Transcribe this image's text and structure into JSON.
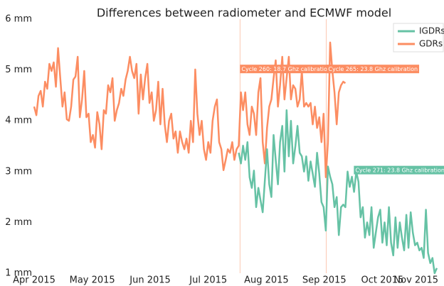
{
  "chart_data": {
    "type": "line",
    "title": "Differences between radiometer and ECMWF model",
    "xlim": [
      0,
      187
    ],
    "ylim": [
      1,
      6
    ],
    "xticks": [
      {
        "value": 0,
        "label": "Apr 2015"
      },
      {
        "value": 26.7,
        "label": "May 2015"
      },
      {
        "value": 53.3,
        "label": "Jun 2015"
      },
      {
        "value": 80,
        "label": "Jul 2015"
      },
      {
        "value": 106.7,
        "label": "Aug 2015"
      },
      {
        "value": 133.3,
        "label": "Sep 2015"
      },
      {
        "value": 160,
        "label": "Oct 2015"
      },
      {
        "value": 186.7,
        "label": "Nov 2015"
      }
    ],
    "yticks": [
      {
        "value": 1,
        "label": "1 mm"
      },
      {
        "value": 2,
        "label": "2 mm"
      },
      {
        "value": 3,
        "label": "3 mm"
      },
      {
        "value": 4,
        "label": "4 mm"
      },
      {
        "value": 5,
        "label": "5 mm"
      },
      {
        "value": 6,
        "label": "6 mm"
      }
    ],
    "legend": "upper right",
    "vlines": [
      94.6,
      134.2
    ],
    "vline_color": "#fcc9b3",
    "annotations": [
      {
        "text": "Cycle 260: 18.7 Ghz calibration",
        "x": 94.6,
        "y": 5.02,
        "color": "#fc8d62"
      },
      {
        "text": "Cycle 265: 23.8 Ghz calibration",
        "x": 134.5,
        "y": 5.02,
        "color": "#fc8d62"
      },
      {
        "text": "Cycle 271: 23.8 Ghz calibration",
        "x": 146.9,
        "y": 3.03,
        "color": "#66c2a5"
      }
    ],
    "series": [
      {
        "name": "IGDRs",
        "color": "#66c2a5",
        "x": [
          94,
          95,
          96,
          97,
          98,
          99,
          100,
          101,
          102,
          103,
          104,
          105,
          106,
          107,
          108,
          109,
          110,
          111,
          112,
          113,
          114,
          115,
          116,
          117,
          118,
          119,
          120,
          121,
          122,
          123,
          124,
          125,
          126,
          127,
          128,
          129,
          130,
          131,
          132,
          133,
          134,
          135,
          136,
          137,
          138,
          139,
          140,
          141,
          142,
          143,
          144,
          145,
          146,
          147,
          148,
          149,
          150,
          151,
          152,
          153,
          154,
          155,
          156,
          157,
          158,
          159,
          160,
          161,
          162,
          163,
          164,
          165,
          166,
          167,
          168,
          169,
          170,
          171,
          172,
          173,
          174,
          175,
          176,
          177,
          178,
          179,
          180,
          181,
          182,
          183,
          184,
          185
        ],
        "values": [
          3.37,
          3.16,
          3.51,
          3.23,
          3.58,
          2.89,
          2.68,
          3.02,
          2.3,
          2.68,
          2.44,
          2.2,
          2.82,
          3.44,
          2.75,
          2.5,
          3.72,
          3.23,
          2.75,
          3.58,
          3.9,
          3.0,
          4.21,
          3.3,
          4.0,
          3.16,
          3.5,
          3.9,
          3.37,
          3.3,
          3.0,
          3.3,
          2.82,
          3.2,
          2.96,
          2.7,
          3.37,
          2.96,
          2.4,
          2.3,
          1.84,
          3.1,
          2.9,
          2.75,
          2.3,
          2.5,
          1.75,
          2.3,
          2.35,
          2.3,
          3.0,
          2.7,
          2.9,
          2.6,
          3.0,
          2.8,
          2.1,
          2.3,
          1.7,
          2.0,
          1.75,
          2.3,
          1.5,
          1.8,
          2.1,
          2.25,
          1.6,
          2.0,
          1.55,
          2.3,
          1.6,
          1.35,
          2.1,
          1.5,
          2.0,
          1.7,
          1.45,
          2.15,
          1.5,
          2.2,
          1.8,
          1.55,
          1.6,
          1.45,
          1.5,
          1.3,
          2.25,
          1.4,
          1.2,
          1.3,
          1.0,
          1.1
        ]
      },
      {
        "name": "GDRs",
        "color": "#fc8d62",
        "x": [
          0,
          1,
          2,
          3,
          4,
          5,
          6,
          7,
          8,
          9,
          10,
          11,
          12,
          13,
          14,
          15,
          16,
          17,
          18,
          19,
          20,
          21,
          22,
          23,
          24,
          25,
          26,
          27,
          28,
          29,
          30,
          31,
          32,
          33,
          34,
          35,
          36,
          37,
          38,
          39,
          40,
          41,
          42,
          43,
          44,
          45,
          46,
          47,
          48,
          49,
          50,
          51,
          52,
          53,
          54,
          55,
          56,
          57,
          58,
          59,
          60,
          61,
          62,
          63,
          64,
          65,
          66,
          67,
          68,
          69,
          70,
          71,
          72,
          73,
          74,
          75,
          76,
          77,
          78,
          79,
          80,
          81,
          82,
          83,
          84,
          85,
          86,
          87,
          88,
          89,
          90,
          91,
          92,
          93,
          94,
          95,
          96,
          97,
          98,
          99,
          100,
          101,
          102,
          103,
          104,
          105,
          106,
          107,
          108,
          109,
          110,
          111,
          112,
          113,
          114,
          115,
          116,
          117,
          118,
          119,
          120,
          121,
          122,
          123,
          124,
          125,
          126,
          127,
          128,
          129,
          130,
          131,
          132,
          133,
          134,
          135,
          136,
          137,
          138,
          139,
          140,
          141,
          142,
          143
        ],
        "values": [
          4.28,
          4.11,
          4.49,
          4.59,
          4.28,
          4.77,
          4.63,
          5.12,
          4.98,
          5.15,
          4.67,
          5.43,
          4.84,
          4.28,
          4.56,
          4.03,
          4.0,
          4.28,
          4.81,
          4.87,
          5.26,
          4.07,
          4.42,
          4.98,
          4.07,
          4.14,
          3.58,
          3.72,
          3.47,
          4.17,
          3.93,
          3.44,
          4.21,
          4.14,
          4.7,
          4.56,
          4.84,
          4.0,
          4.21,
          4.35,
          4.63,
          4.49,
          4.81,
          4.98,
          5.26,
          4.98,
          4.84,
          5.12,
          4.14,
          4.91,
          4.42,
          4.84,
          5.12,
          4.35,
          4.56,
          4.0,
          4.21,
          4.77,
          3.93,
          4.63,
          3.93,
          3.58,
          4.0,
          4.14,
          3.65,
          3.79,
          3.37,
          3.79,
          3.58,
          3.44,
          3.65,
          3.37,
          4.0,
          3.58,
          5.01,
          4.14,
          3.72,
          4.0,
          3.44,
          3.23,
          3.58,
          3.37,
          4.0,
          4.28,
          4.42,
          3.58,
          3.44,
          3.03,
          3.23,
          3.44,
          3.37,
          3.58,
          3.23,
          3.44,
          3.51,
          4.56,
          4.21,
          4.56,
          3.93,
          3.72,
          4.28,
          4.14,
          3.72,
          4.56,
          4.84,
          3.58,
          3.16,
          3.86,
          4.28,
          4.42,
          4.84,
          5.19,
          4.28,
          4.7,
          5.26,
          4.42,
          4.84,
          5.26,
          4.42,
          4.7,
          4.63,
          4.28,
          4.42,
          4.98,
          4.28,
          4.35,
          4.28,
          4.35,
          3.93,
          4.28,
          3.86,
          4.07,
          3.58,
          4.14,
          2.89,
          3.58,
          5.54,
          4.98,
          4.56,
          3.93,
          4.56,
          4.7,
          4.77,
          4.74
        ]
      }
    ]
  }
}
